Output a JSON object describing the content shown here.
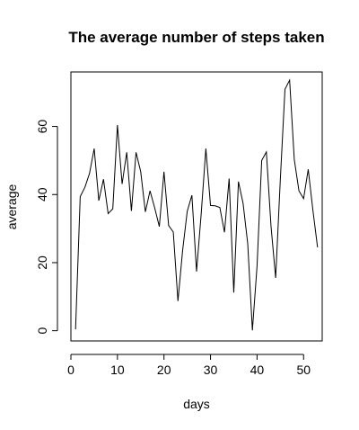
{
  "chart_data": {
    "type": "line",
    "title": "The average number of steps taken",
    "xlabel": "days",
    "ylabel": "average",
    "xlim": [
      0,
      54
    ],
    "ylim": [
      -3,
      76
    ],
    "xticks": [
      0,
      10,
      20,
      30,
      40,
      50
    ],
    "yticks": [
      0,
      20,
      40,
      60
    ],
    "x": [
      1,
      2,
      3,
      4,
      5,
      6,
      7,
      8,
      9,
      10,
      11,
      12,
      13,
      14,
      15,
      16,
      17,
      18,
      19,
      20,
      21,
      22,
      23,
      24,
      25,
      26,
      27,
      28,
      29,
      30,
      31,
      32,
      33,
      34,
      35,
      36,
      37,
      38,
      39,
      40,
      41,
      42,
      43,
      44,
      45,
      46,
      47,
      48,
      49,
      50,
      51,
      52,
      53
    ],
    "series": [
      {
        "values": [
          0.4,
          39.4,
          42.1,
          46.2,
          53.5,
          38.2,
          44.5,
          34.4,
          35.8,
          60.4,
          43.1,
          52.4,
          35.2,
          52.4,
          46.7,
          34.9,
          41.1,
          36.1,
          30.6,
          46.7,
          30.9,
          29.0,
          8.7,
          23.5,
          35.1,
          39.8,
          17.4,
          34.4,
          53.5,
          36.8,
          36.7,
          36.2,
          28.9,
          44.7,
          11.2,
          43.8,
          37.4,
          25.5,
          0.1,
          19.0,
          50.0,
          52.5,
          30.7,
          15.5,
          44.4,
          70.9,
          73.6,
          50.3,
          41.1,
          38.8,
          47.4,
          35.4,
          24.5
        ]
      }
    ]
  }
}
